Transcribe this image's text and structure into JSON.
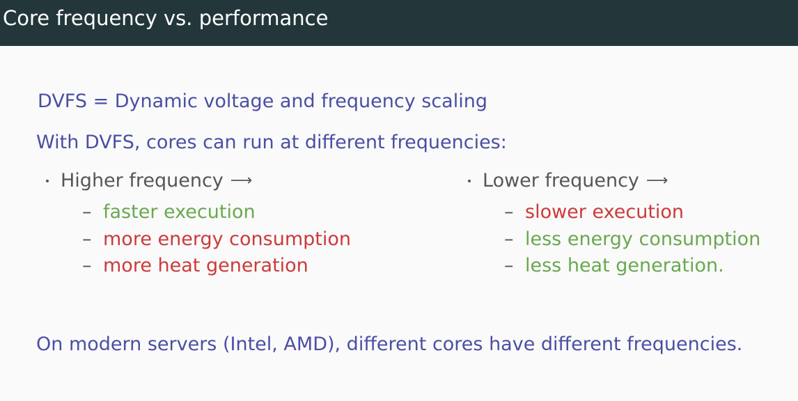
{
  "slide": {
    "title": "Core frequency vs. performance",
    "definition": "DVFS = Dynamic voltage and frequency scaling",
    "intro": "With DVFS, cores can run at different frequencies:",
    "left_column": {
      "heading": "Higher frequency",
      "arrow": "⟶",
      "items": [
        {
          "text": "faster execution",
          "color": "#6aa84f"
        },
        {
          "text": "more energy consumption",
          "color": "#cc3a3a"
        },
        {
          "text": "more heat generation",
          "color": "#cc3a3a"
        }
      ]
    },
    "right_column": {
      "heading": "Lower frequency",
      "arrow": "⟶",
      "items": [
        {
          "text": "slower execution",
          "color": "#cc3a3a"
        },
        {
          "text": "less energy consumption",
          "color": "#6aa84f"
        },
        {
          "text": "less heat generation.",
          "color": "#6aa84f"
        }
      ]
    },
    "dash": "–",
    "conclusion": "On modern servers (Intel, AMD), different cores have different frequencies."
  },
  "colors": {
    "title_bar": "#23373b",
    "accent_blue": "#4a4fa3",
    "positive_green": "#6aa84f",
    "negative_red": "#cc3a3a"
  }
}
